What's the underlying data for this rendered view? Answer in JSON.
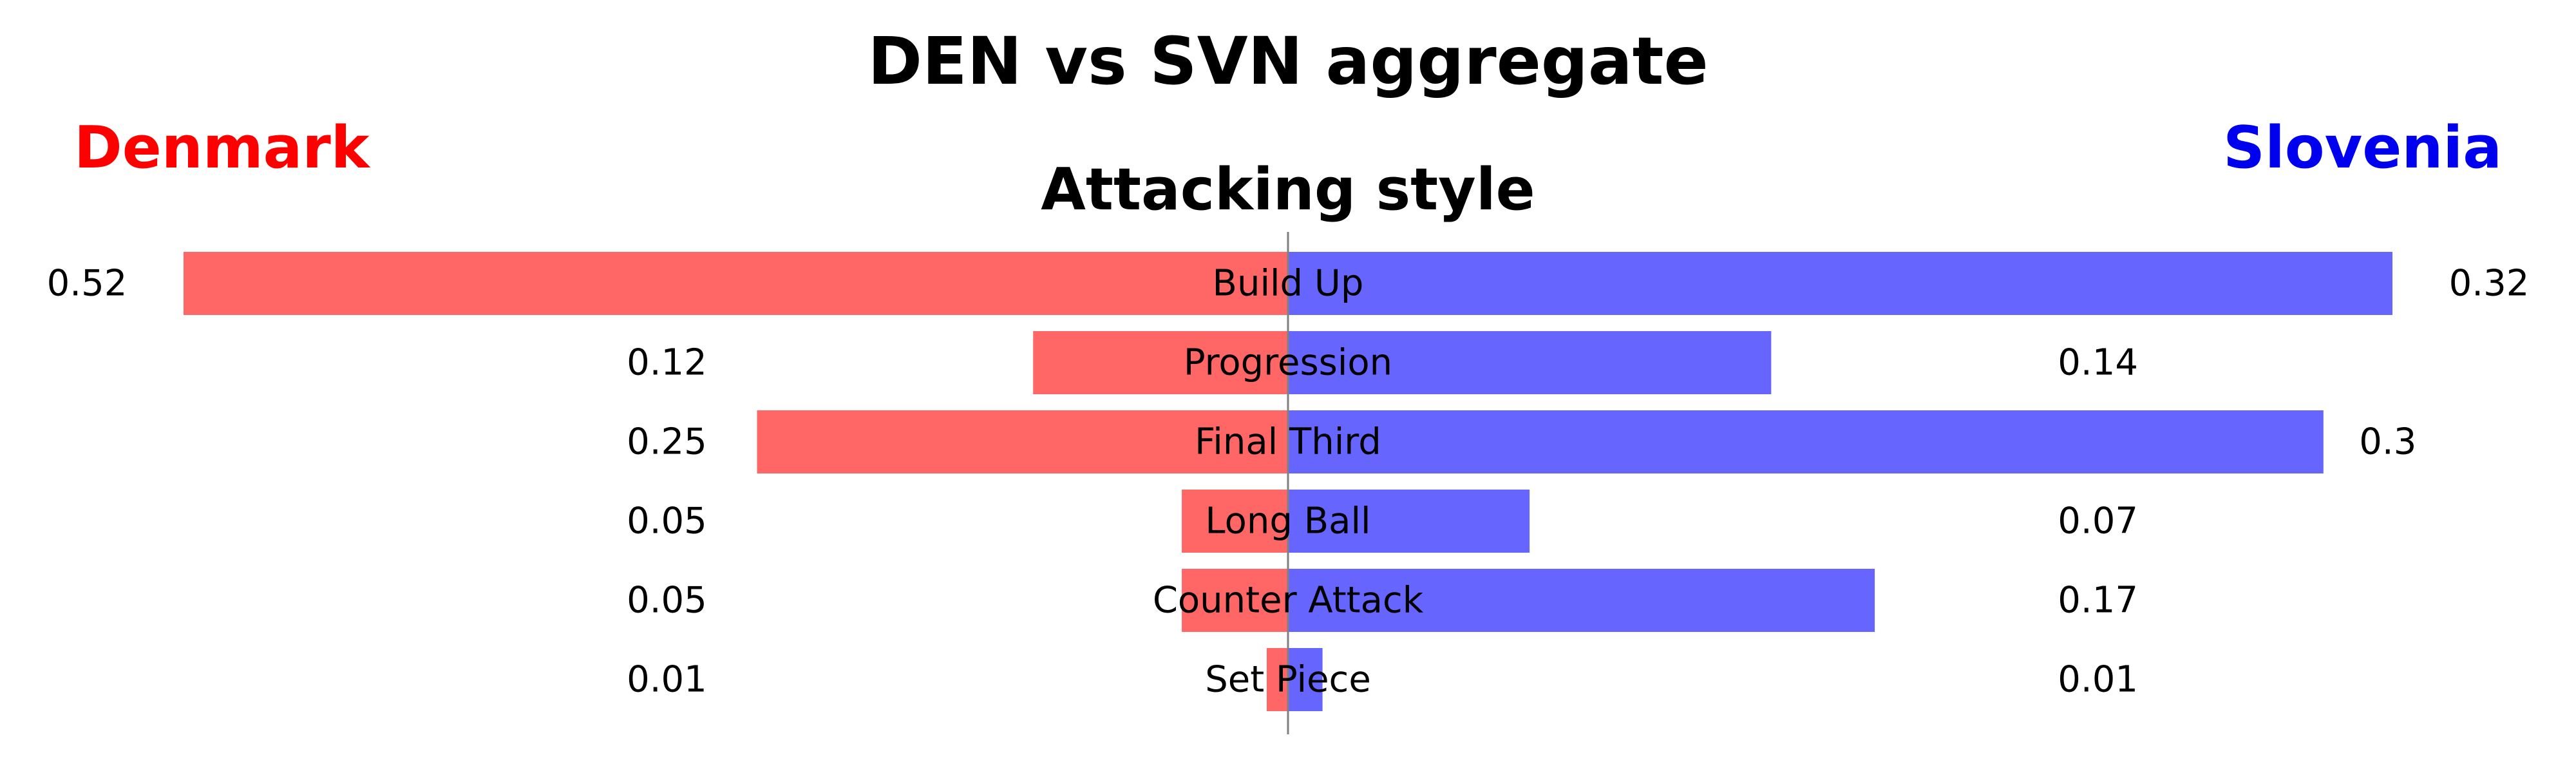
{
  "chart_data": {
    "type": "bar",
    "orientation": "diverging-horizontal",
    "title": "DEN vs SVN aggregate",
    "subtitle": "Attacking style",
    "categories": [
      "Build Up",
      "Progression",
      "Final Third",
      "Long Ball",
      "Counter Attack",
      "Set Piece"
    ],
    "series": [
      {
        "name": "Denmark",
        "side": "left",
        "color": "#ff6666",
        "label_color": "#ff0000",
        "values": [
          0.52,
          0.12,
          0.25,
          0.05,
          0.05,
          0.01
        ],
        "value_labels": [
          "0.52",
          "0.12",
          "0.25",
          "0.05",
          "0.05",
          "0.01"
        ]
      },
      {
        "name": "Slovenia",
        "side": "right",
        "color": "#6666ff",
        "label_color": "#0000ee",
        "values": [
          0.32,
          0.14,
          0.3,
          0.07,
          0.17,
          0.01
        ],
        "value_labels": [
          "0.32",
          "0.14",
          "0.3",
          "0.07",
          "0.17",
          "0.01"
        ]
      }
    ],
    "axes_visible": false,
    "grid": false,
    "center_line": true
  }
}
